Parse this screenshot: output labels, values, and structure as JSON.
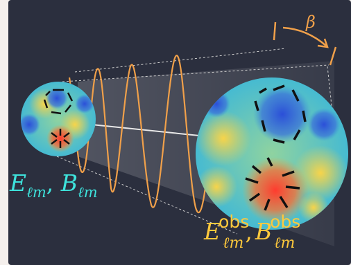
{
  "labels": {
    "emitted_E": "E",
    "emitted_B": "B",
    "emitted_sub": "ℓm",
    "separator": ",",
    "observed_E": "E",
    "observed_B": "B",
    "observed_sup": "obs",
    "observed_sub": "ℓm",
    "rotation_angle": "β"
  },
  "colors": {
    "background": "#2b2f3e",
    "wave": "#f0a04a",
    "emitted_label": "#3ee3dc",
    "observed_label": "#ffc93c",
    "bars": "#111111",
    "map_base": "#4fc7d6"
  },
  "icons": [
    "cmb-map-small",
    "cmb-map-large",
    "polarization-wave",
    "rotation-arrow"
  ]
}
